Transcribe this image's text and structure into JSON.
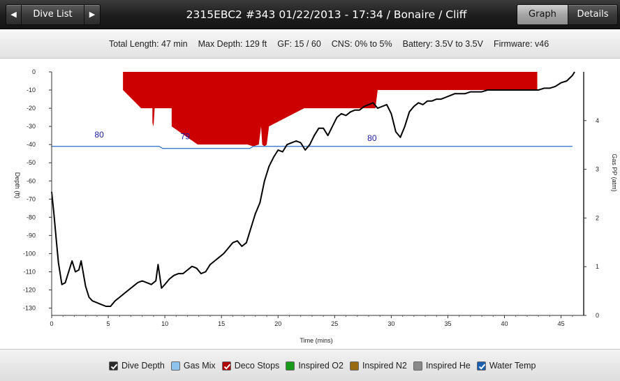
{
  "nav": {
    "back_arrow": "◀",
    "dive_list_label": "Dive List",
    "forward_arrow": "▶",
    "graph_tab": "Graph",
    "details_tab": "Details"
  },
  "header": {
    "title": "2315EBC2 #343 01/22/2013 - 17:34  / Bonaire / Cliff"
  },
  "info": {
    "total_length": "Total Length: 47 min",
    "max_depth": "Max Depth: 129 ft",
    "gf": "GF: 15 / 60",
    "cns": "CNS: 0% to 5%",
    "battery": "Battery: 3.5V to 3.5V",
    "firmware": "Firmware: v46"
  },
  "legend": [
    {
      "label": "Dive Depth",
      "color": "#2a2a2a",
      "checked": true
    },
    {
      "label": "Gas Mix",
      "color": "#8ec3ee",
      "checked": false
    },
    {
      "label": "Deco Stops",
      "color": "#b00000",
      "checked": true
    },
    {
      "label": "Inspired O2",
      "color": "#1a9a1a",
      "checked": false
    },
    {
      "label": "Inspired N2",
      "color": "#9a6a10",
      "checked": false
    },
    {
      "label": "Inspired He",
      "color": "#8a8a8a",
      "checked": false
    },
    {
      "label": "Water Temp",
      "color": "#1a5fb0",
      "checked": true
    }
  ],
  "chart_data": {
    "type": "line",
    "xlabel": "Time (mins)",
    "ylabel": "Depth (ft)",
    "y2label": "Gas PP (atm)",
    "xlim": [
      0,
      47
    ],
    "ylim": [
      -134,
      0
    ],
    "y2lim": [
      0,
      5
    ],
    "xticks": [
      0,
      5,
      10,
      15,
      20,
      25,
      30,
      35,
      40,
      45
    ],
    "yticks": [
      0,
      -10,
      -20,
      -30,
      -40,
      -50,
      -60,
      -70,
      -80,
      -90,
      -100,
      -110,
      -120,
      -130
    ],
    "y2ticks": [
      0,
      1,
      2,
      3,
      4
    ],
    "depth_color": "#000000",
    "deco_color": "#cc0000",
    "temp_color": "#2a6fc8",
    "series": [
      {
        "name": "Dive Depth",
        "x": [
          0,
          0.2,
          0.4,
          0.6,
          0.9,
          1.2,
          1.5,
          1.8,
          2.1,
          2.4,
          2.6,
          2.8,
          3.0,
          3.3,
          3.6,
          4.0,
          4.4,
          4.8,
          5.2,
          5.6,
          6.0,
          6.4,
          6.8,
          7.2,
          7.6,
          8.0,
          8.4,
          8.8,
          9.2,
          9.4,
          9.7,
          10.0,
          10.4,
          10.8,
          11.2,
          11.6,
          12.0,
          12.4,
          12.8,
          13.2,
          13.6,
          14.0,
          14.4,
          14.8,
          15.2,
          15.6,
          16.0,
          16.4,
          16.8,
          17.2,
          17.6,
          18.0,
          18.4,
          18.8,
          19.2,
          19.6,
          20.0,
          20.4,
          20.8,
          21.2,
          21.6,
          22.0,
          22.4,
          22.8,
          23.2,
          23.6,
          24.0,
          24.4,
          24.8,
          25.2,
          25.6,
          26.0,
          26.4,
          26.8,
          27.2,
          27.6,
          28.0,
          28.4,
          28.8,
          29.2,
          29.6,
          30.0,
          30.4,
          30.8,
          31.2,
          31.6,
          32.0,
          32.4,
          32.8,
          33.2,
          33.6,
          34.0,
          34.4,
          34.8,
          35.2,
          35.6,
          36.0,
          36.5,
          37.0,
          37.5,
          38.0,
          38.5,
          39.0,
          39.5,
          40.0,
          40.5,
          41.0,
          41.5,
          42.0,
          42.5,
          43.0,
          43.5,
          44.0,
          44.5,
          45.0,
          45.5,
          46.0,
          46.2
        ],
        "y": [
          -66,
          -78,
          -92,
          -105,
          -117,
          -116,
          -110,
          -104,
          -110,
          -109,
          -104,
          -111,
          -118,
          -124,
          -126,
          -127,
          -128,
          -129,
          -129,
          -126,
          -124,
          -122,
          -120,
          -118,
          -116,
          -115,
          -116,
          -117,
          -115,
          -106,
          -119,
          -117,
          -114,
          -112,
          -111,
          -111,
          -109,
          -107,
          -108,
          -111,
          -110,
          -106,
          -104,
          -102,
          -100,
          -97,
          -94,
          -93,
          -96,
          -94,
          -86,
          -78,
          -72,
          -60,
          -52,
          -47,
          -43,
          -44,
          -40,
          -39,
          -38,
          -39,
          -43,
          -40,
          -35,
          -31,
          -31,
          -35,
          -30,
          -25,
          -23,
          -24,
          -22,
          -21,
          -21,
          -19,
          -18,
          -17,
          -20,
          -19,
          -18,
          -23,
          -33,
          -36,
          -30,
          -22,
          -19,
          -17,
          -18,
          -16,
          -16,
          -15,
          -15,
          -14,
          -13,
          -12,
          -12,
          -12,
          -11,
          -11,
          -11,
          -10,
          -10,
          -10,
          -10,
          -10,
          -10,
          -10,
          -10,
          -10,
          -10,
          -9,
          -9,
          -8,
          -6,
          -5,
          -2,
          0
        ]
      },
      {
        "name": "Deco Stops",
        "x": [
          6.3,
          7.9,
          8.9,
          8.9,
          9.0,
          9.1,
          10.6,
          10.6,
          12.9,
          17.3,
          17.8,
          17.8,
          18.3,
          18.5,
          18.6,
          18.8,
          19.0,
          19.2,
          22.3,
          28.6,
          28.8,
          42.9
        ],
        "y": [
          -10,
          -20,
          -20,
          -28,
          -30,
          -20,
          -20,
          -30,
          -40,
          -40,
          -41,
          -41,
          -40,
          -30,
          -40,
          -41,
          -40,
          -30,
          -20,
          -20,
          -10,
          -10
        ]
      },
      {
        "name": "Water Temp",
        "x": [
          0,
          9.5,
          9.8,
          10.1,
          17.5,
          17.8,
          46
        ],
        "y": [
          80,
          80,
          79,
          79,
          79,
          80,
          80
        ]
      }
    ],
    "annotations": [
      "80",
      "79",
      "80"
    ]
  }
}
